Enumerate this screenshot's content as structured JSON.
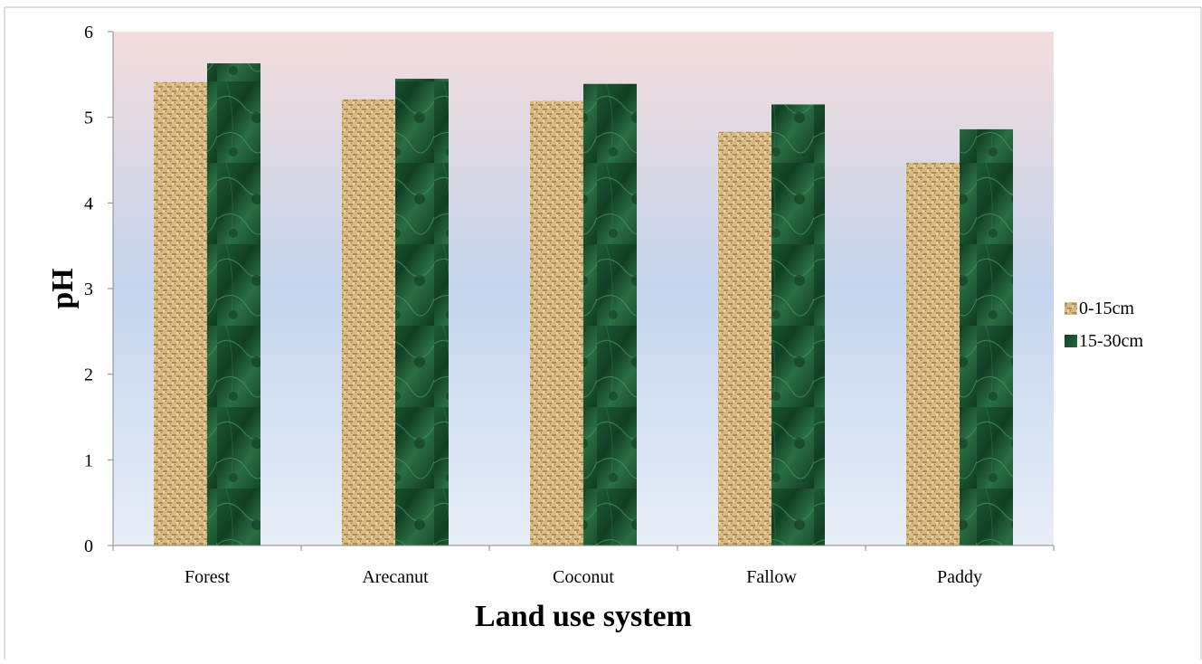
{
  "chart_data": {
    "type": "bar",
    "title": "",
    "xlabel": "Land use system",
    "ylabel": "pH",
    "categories": [
      "Forest",
      "Arecanut",
      "Coconut",
      "Fallow",
      "Paddy"
    ],
    "series": [
      {
        "name": "0-15cm",
        "values": [
          5.41,
          5.21,
          5.19,
          4.83,
          4.47
        ],
        "fill": "burlap-texture"
      },
      {
        "name": "15-30cm",
        "values": [
          5.63,
          5.45,
          5.39,
          5.15,
          4.86
        ],
        "fill": "green-marble-texture"
      }
    ],
    "ylim": [
      0,
      6
    ],
    "yticks": [
      0,
      1,
      2,
      3,
      4,
      5,
      6
    ],
    "grid": false,
    "legend": "right",
    "colors": {
      "plot_bg_top": "#f3dcdc",
      "plot_bg_mid": "#c5d5ee",
      "plot_bg_bottom": "#e8eef8",
      "series_1": "#c8a76e",
      "series_2": "#1f5a34",
      "axis": "#888888"
    }
  }
}
